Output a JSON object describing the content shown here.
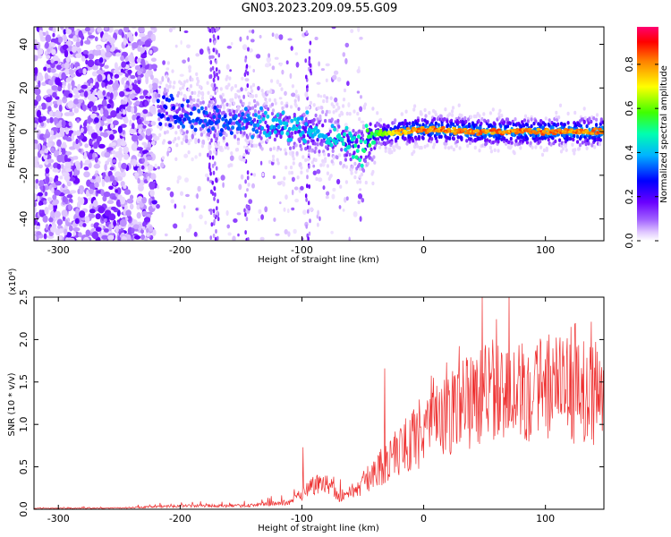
{
  "title": "GN03.2023.209.09.55.G09",
  "chart_data": [
    {
      "type": "heatmap",
      "xlabel": "Height of straight line (km)",
      "ylabel": "Frequency (Hz)",
      "xlim": [
        -320,
        148
      ],
      "ylim": [
        -50,
        48
      ],
      "xticks": [
        -300,
        -200,
        -100,
        0,
        100
      ],
      "yticks": [
        -40,
        -20,
        0,
        20,
        40
      ],
      "colorbar": {
        "label": "Normalized spectral amplitude",
        "range": [
          0.0,
          0.97
        ],
        "ticks": [
          "0.0",
          "0.2",
          "0.4",
          "0.6",
          "0.8"
        ],
        "colors": [
          "#ffffff",
          "#c8a0ff",
          "#7a00ff",
          "#0000ff",
          "#00c8ff",
          "#00ff80",
          "#80ff00",
          "#ffff00",
          "#ff8000",
          "#ff0000",
          "#ff0080"
        ]
      },
      "ridge": {
        "x": [
          -215,
          -200,
          -180,
          -160,
          -140,
          -120,
          -100,
          -80,
          -60,
          -50,
          -45,
          -40,
          -30,
          -20,
          0,
          50,
          100,
          148
        ],
        "y": [
          10,
          8,
          6,
          5,
          4,
          2,
          1,
          -2,
          -5,
          -8,
          -4,
          -1,
          -1,
          0,
          1,
          0,
          0,
          0
        ],
        "amplitude": [
          0.3,
          0.35,
          0.35,
          0.35,
          0.4,
          0.45,
          0.45,
          0.45,
          0.5,
          0.55,
          0.6,
          0.6,
          0.7,
          0.85,
          0.9,
          0.9,
          0.9,
          0.9
        ]
      },
      "noise_region": {
        "x_range": [
          -320,
          -220
        ],
        "y_range": [
          -50,
          48
        ]
      }
    },
    {
      "type": "line",
      "xlabel": "Height of straight line (km)",
      "ylabel": "SNR (10 * v/v)",
      "yscale_label": "(x10⁴)",
      "xlim": [
        -320,
        148
      ],
      "ylim": [
        0.0,
        2.5
      ],
      "xticks": [
        -300,
        -200,
        -100,
        0,
        100
      ],
      "yticks": [
        "0.0",
        "0.5",
        "1.0",
        "1.5",
        "2.0",
        "2.5"
      ],
      "color": "#ee3030",
      "envelope": {
        "x": [
          -320,
          -250,
          -200,
          -150,
          -110,
          -95,
          -80,
          -70,
          -60,
          -50,
          -40,
          -30,
          -20,
          -10,
          0,
          20,
          40,
          60,
          80,
          100,
          120,
          148
        ],
        "y": [
          0.01,
          0.015,
          0.04,
          0.04,
          0.08,
          0.25,
          0.35,
          0.15,
          0.2,
          0.3,
          0.45,
          0.55,
          0.7,
          0.8,
          0.9,
          1.1,
          1.3,
          1.4,
          1.4,
          1.45,
          1.4,
          1.35
        ]
      },
      "peaks": [
        {
          "x": -99,
          "y": 0.73
        },
        {
          "x": -32,
          "y": 1.66
        },
        {
          "x": 48,
          "y": 2.5
        },
        {
          "x": 70,
          "y": 2.55
        }
      ]
    }
  ]
}
